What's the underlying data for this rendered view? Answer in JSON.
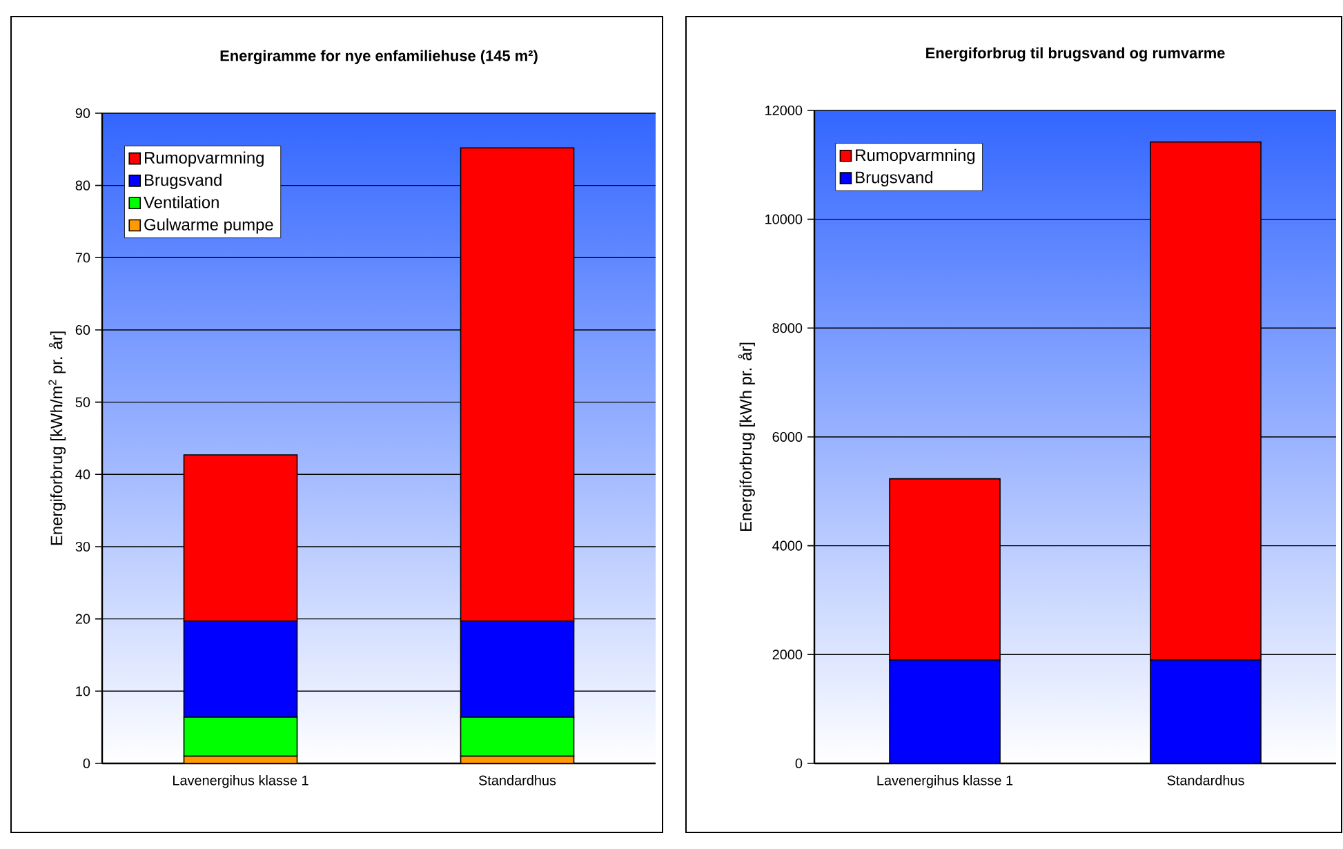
{
  "chart_data": [
    {
      "type": "bar",
      "title": "Energiramme for nye enfamiliehuse (145 m²)",
      "ylabel": "Energiforbrug [kWh/m$^{2}$ pr. år]",
      "categories": [
        "Lavenergihus klasse 1",
        "Standardhus"
      ],
      "stacked": true,
      "grid": "y",
      "legend": "top left",
      "ylim": [
        0,
        90
      ],
      "yticks": [
        0,
        10,
        20,
        30,
        40,
        50,
        60,
        70,
        80,
        90
      ],
      "series": [
        {
          "name": "Gulwarme pumpe",
          "color": "#ff9900",
          "values": [
            1.0,
            1.0
          ]
        },
        {
          "name": "Ventilation",
          "color": "#00ff00",
          "values": [
            5.4,
            5.4
          ]
        },
        {
          "name": "Brugsvand",
          "color": "#0000ff",
          "values": [
            13.3,
            13.3
          ]
        },
        {
          "name": "Rumopvarmning",
          "color": "#ff0000",
          "values": [
            23.0,
            65.5
          ]
        }
      ]
    },
    {
      "type": "bar",
      "title": "Energiforbrug til brugsvand og rumvarme",
      "ylabel": "Energiforbrug [kWh pr. år]",
      "categories": [
        "Lavenergihus klasse 1",
        "Standardhus"
      ],
      "stacked": true,
      "grid": "y",
      "legend": "top left",
      "ylim": [
        0,
        12000
      ],
      "yticks": [
        0,
        2000,
        4000,
        6000,
        8000,
        10000,
        12000
      ],
      "series": [
        {
          "name": "Brugsvand",
          "color": "#0000ff",
          "values": [
            1900,
            1900
          ]
        },
        {
          "name": "Rumopvarmning",
          "color": "#ff0000",
          "values": [
            3330,
            9520
          ]
        }
      ]
    }
  ]
}
